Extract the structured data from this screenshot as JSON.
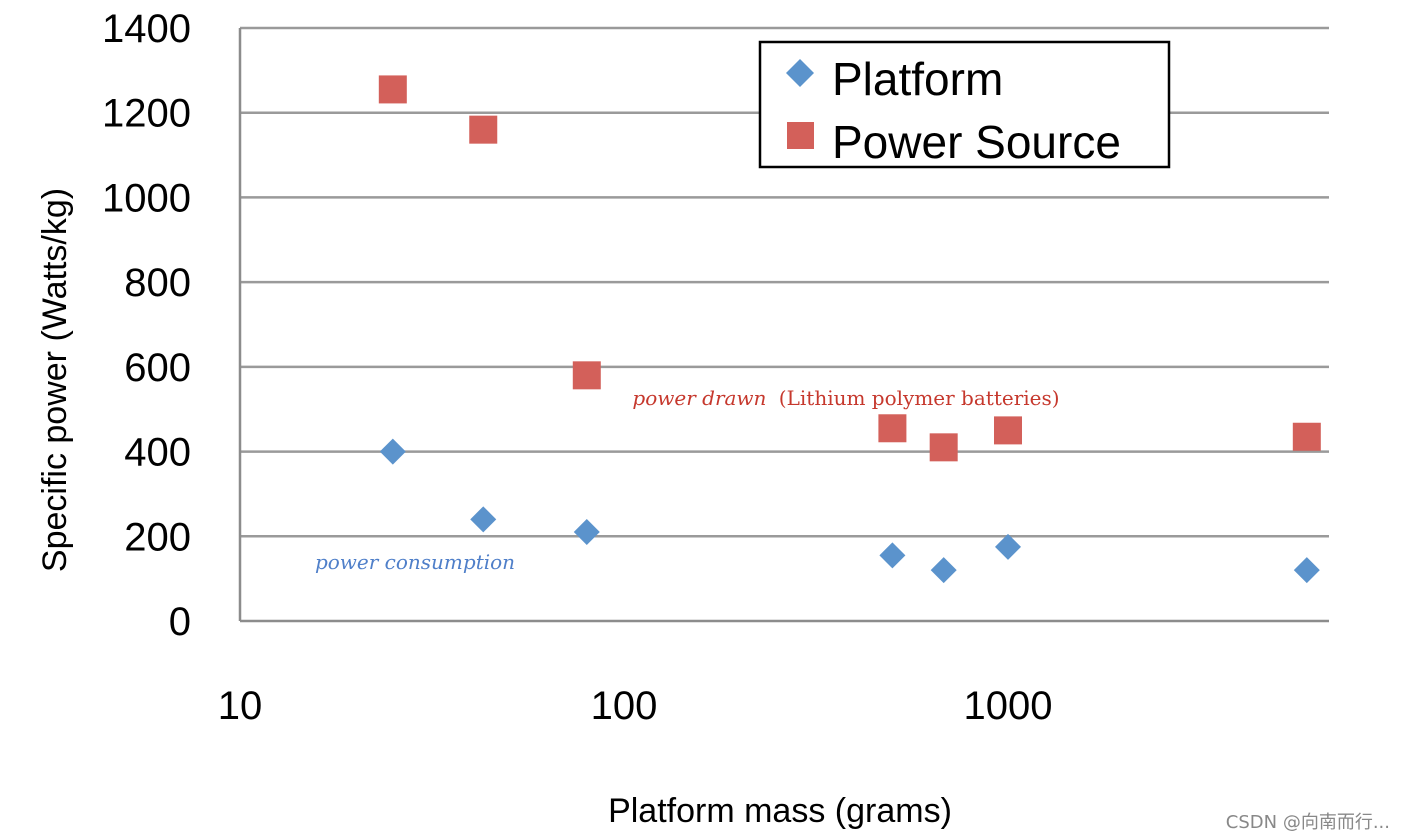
{
  "chart_data": {
    "type": "scatter",
    "xlabel": "Platform mass (grams)",
    "ylabel": "Specific power (Watts/kg)",
    "xscale": "log",
    "xlim": [
      10,
      7000
    ],
    "ylim": [
      0,
      1400
    ],
    "x_ticks": [
      "10",
      "100",
      "1000"
    ],
    "y_ticks": [
      "0",
      "200",
      "400",
      "600",
      "800",
      "1000",
      "1200",
      "1400"
    ],
    "grid": "horizontal",
    "legend_position": "top-right",
    "series": [
      {
        "name": "Platform",
        "marker": "diamond",
        "color": "#5B93CC",
        "points": [
          {
            "x": 25,
            "y": 400
          },
          {
            "x": 43,
            "y": 240
          },
          {
            "x": 80,
            "y": 210
          },
          {
            "x": 500,
            "y": 155
          },
          {
            "x": 680,
            "y": 120
          },
          {
            "x": 1000,
            "y": 175
          },
          {
            "x": 6000,
            "y": 120
          }
        ]
      },
      {
        "name": "Power Source",
        "marker": "square",
        "color": "#D3605A",
        "points": [
          {
            "x": 25,
            "y": 1255
          },
          {
            "x": 43,
            "y": 1160
          },
          {
            "x": 80,
            "y": 580
          },
          {
            "x": 500,
            "y": 455
          },
          {
            "x": 680,
            "y": 410
          },
          {
            "x": 1000,
            "y": 450
          },
          {
            "x": 6000,
            "y": 435
          }
        ]
      }
    ],
    "annotations": {
      "power_drawn_italic": "power drawn",
      "power_drawn_rest": "(Lithium polymer batteries)",
      "power_consumption": "power consumption"
    }
  },
  "watermark": "CSDN @向南而行..."
}
